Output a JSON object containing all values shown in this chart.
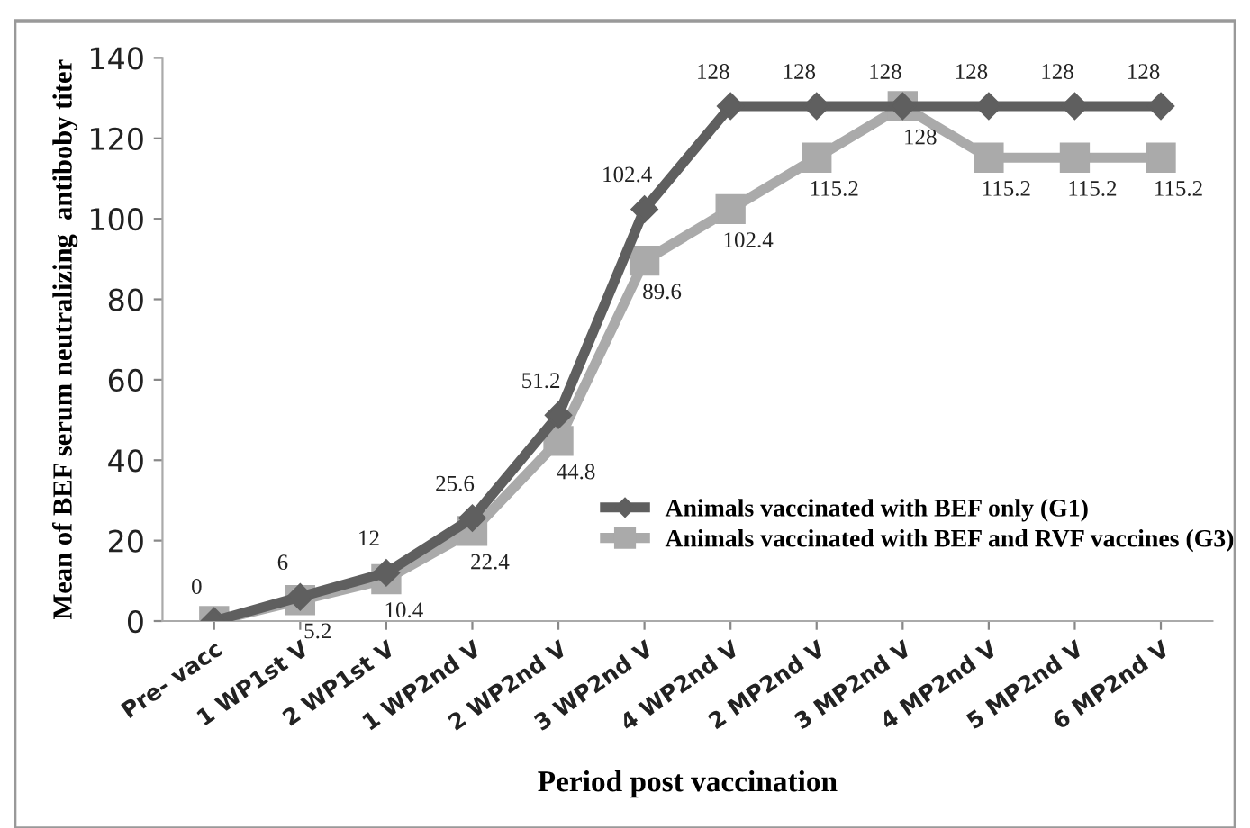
{
  "chart_data": {
    "type": "line",
    "xlabel": "Period post vaccination",
    "ylabel": "Mean of BEF serum neutralizing  antiboby titer",
    "categories": [
      "Pre- vacc",
      "1 WP1st V",
      "2 WP1st V",
      "1 WP2nd V",
      "2 WP2nd V",
      "3 WP2nd V",
      "4 WP2nd V",
      "2 MP2nd V",
      "3 MP2nd V",
      "4 MP2nd V",
      "5 MP2nd V",
      "6 MP2nd V"
    ],
    "series": [
      {
        "name": "Animals vaccinated with BEF only (G1)",
        "color": "#5f5f5f",
        "marker": "diamond",
        "values": [
          0,
          6,
          12,
          25.6,
          51.2,
          102.4,
          128,
          128,
          128,
          128,
          128,
          128
        ],
        "value_labels": [
          "0",
          "6",
          "12",
          "25.6",
          "51.2",
          "102.4",
          "128",
          "128",
          "128",
          "128",
          "128",
          "128"
        ]
      },
      {
        "name": "Animals vaccinated with BEF and RVF vaccines (G3)",
        "color": "#aaaaaa",
        "marker": "square",
        "values": [
          0,
          5.2,
          10.4,
          22.4,
          44.8,
          89.6,
          102.4,
          115.2,
          128,
          115.2,
          115.2,
          115.2
        ],
        "value_labels": [
          null,
          "5.2",
          "10.4",
          "22.4",
          "44.8",
          "89.6",
          "102.4",
          "115.2",
          "128",
          "115.2",
          "115.2",
          "115.2"
        ]
      }
    ],
    "ylim": [
      0,
      140
    ],
    "yticks": [
      0,
      20,
      40,
      60,
      80,
      100,
      120,
      140
    ],
    "grid": false,
    "legend": "right",
    "line_style": "solid"
  }
}
